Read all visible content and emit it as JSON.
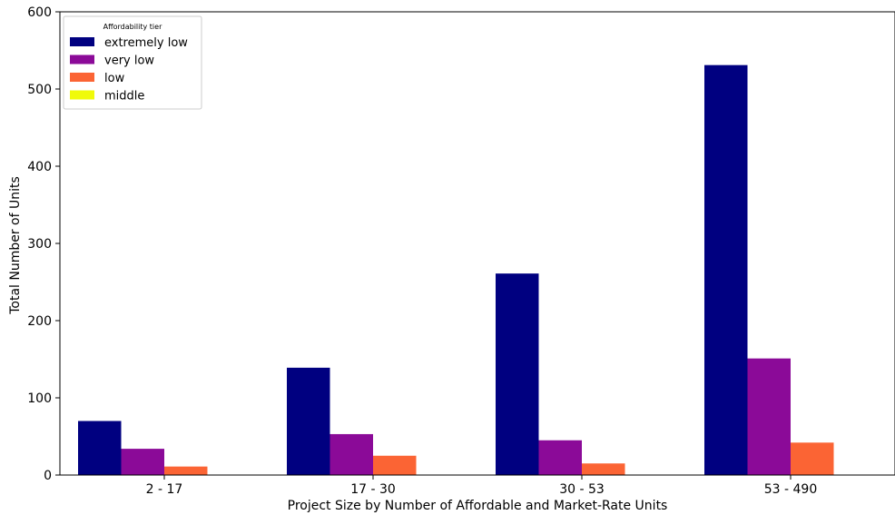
{
  "chart_data": {
    "type": "bar",
    "title": "",
    "xlabel": "Project Size by Number of Affordable and Market-Rate Units",
    "ylabel": "Total Number of Units",
    "ylim": [
      0,
      600
    ],
    "yticks": [
      0,
      100,
      200,
      300,
      400,
      500,
      600
    ],
    "categories": [
      "2 - 17",
      "17 - 30",
      "30 - 53",
      "53 - 490"
    ],
    "series": [
      {
        "name": "extremely low",
        "color": "#000080",
        "values": [
          70,
          139,
          261,
          531
        ]
      },
      {
        "name": "very low",
        "color": "#8b0a98",
        "values": [
          34,
          53,
          45,
          151
        ]
      },
      {
        "name": "low",
        "color": "#fb6434",
        "values": [
          11,
          25,
          15,
          42
        ]
      },
      {
        "name": "middle",
        "color": "#f0fa0a",
        "values": [
          0,
          0,
          0,
          0
        ]
      }
    ],
    "legend": {
      "title": "Affordability tier",
      "position": "top-left"
    },
    "grid": false
  }
}
